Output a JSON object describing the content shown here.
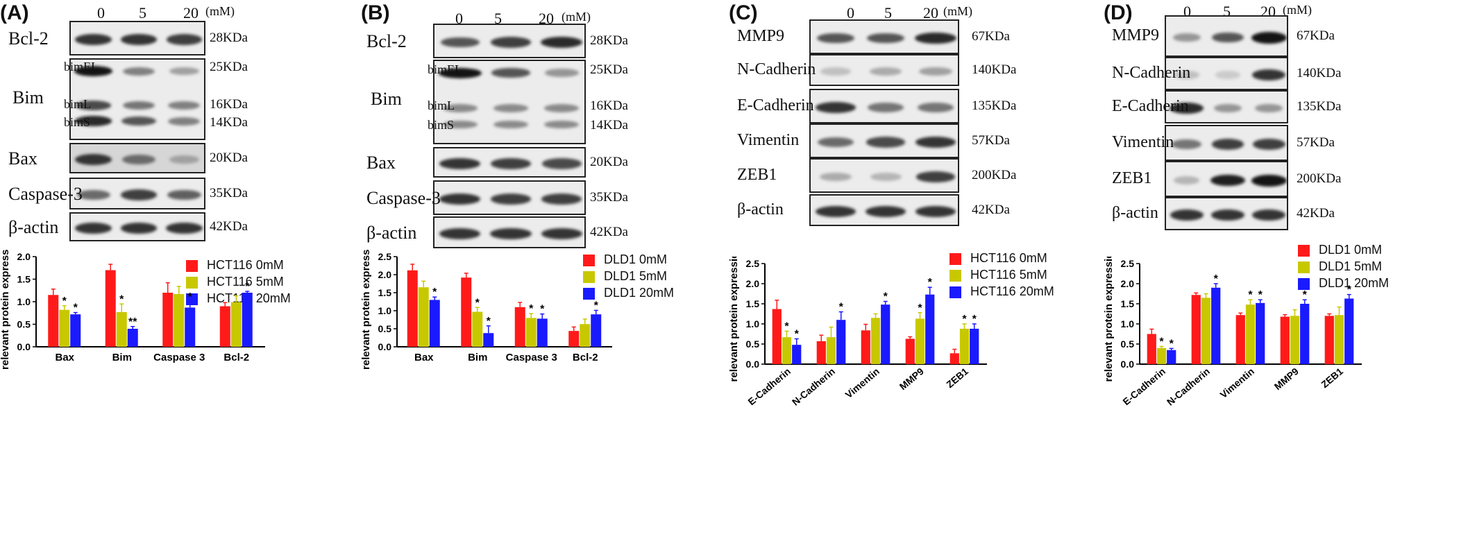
{
  "panels": [
    {
      "label": "(A)",
      "conc": [
        "0",
        "5",
        "20",
        "(mM)"
      ],
      "rows": [
        {
          "name": "Bcl-2",
          "kda": [
            "28KDa"
          ],
          "sub": [],
          "bands": [
            [
              0.85,
              0.85,
              0.8
            ]
          ]
        },
        {
          "name": "Bim",
          "sub": [
            "bimEL",
            "bimL",
            "bimS"
          ],
          "kda": [
            "25KDa",
            "16KDa",
            "14KDa"
          ],
          "bands": [
            [
              1.0,
              0.5,
              0.35
            ],
            [
              0.75,
              0.55,
              0.5
            ],
            [
              0.9,
              0.7,
              0.5
            ]
          ]
        },
        {
          "name": "Bax",
          "kda": [
            "20KDa"
          ],
          "sub": [],
          "bands": [
            [
              0.85,
              0.6,
              0.35
            ]
          ]
        },
        {
          "name": "Caspase-3",
          "kda": [
            "35KDa"
          ],
          "sub": [],
          "bands": [
            [
              0.6,
              0.8,
              0.65
            ]
          ]
        },
        {
          "name": "β-actin",
          "kda": [
            "42KDa"
          ],
          "sub": [],
          "bands": [
            [
              0.85,
              0.85,
              0.85
            ]
          ]
        }
      ],
      "legend": [
        "HCT116 0mM",
        "HCT116 5mM",
        "HCT116 20mM"
      ]
    },
    {
      "label": "(B)",
      "conc": [
        "0",
        "5",
        "20",
        "(mM)"
      ],
      "rows": [
        {
          "name": "Bcl-2",
          "kda": [
            "28KDa"
          ],
          "sub": [],
          "bands": [
            [
              0.7,
              0.8,
              0.9
            ]
          ]
        },
        {
          "name": "Bim",
          "sub": [
            "bimEL",
            "bimL",
            "bimS"
          ],
          "kda": [
            "25KDa",
            "16KDa",
            "14KDa"
          ],
          "bands": [
            [
              1.0,
              0.7,
              0.4
            ],
            [
              0.45,
              0.45,
              0.45
            ],
            [
              0.45,
              0.45,
              0.45
            ]
          ]
        },
        {
          "name": "Bax",
          "kda": [
            "20KDa"
          ],
          "sub": [],
          "bands": [
            [
              0.85,
              0.8,
              0.75
            ]
          ]
        },
        {
          "name": "Caspase-3",
          "kda": [
            "35KDa"
          ],
          "sub": [],
          "bands": [
            [
              0.85,
              0.8,
              0.8
            ]
          ]
        },
        {
          "name": "β-actin",
          "kda": [
            "42KDa"
          ],
          "sub": [],
          "bands": [
            [
              0.85,
              0.85,
              0.85
            ]
          ]
        }
      ],
      "legend": [
        "DLD1 0mM",
        "DLD1 5mM",
        "DLD1 20mM"
      ]
    },
    {
      "label": "(C)",
      "conc": [
        "0",
        "5",
        "20",
        "(mM)"
      ],
      "rows": [
        {
          "name": "MMP9",
          "kda": [
            "67KDa"
          ],
          "sub": [],
          "bands": [
            [
              0.7,
              0.7,
              0.9
            ]
          ]
        },
        {
          "name": "N-Cadherin",
          "kda": [
            "140KDa"
          ],
          "sub": [],
          "bands": [
            [
              0.2,
              0.3,
              0.35
            ]
          ]
        },
        {
          "name": "E-Cadherin",
          "kda": [
            "135KDa"
          ],
          "sub": [],
          "bands": [
            [
              0.85,
              0.55,
              0.55
            ]
          ]
        },
        {
          "name": "Vimentin",
          "kda": [
            "57KDa"
          ],
          "sub": [],
          "bands": [
            [
              0.6,
              0.75,
              0.85
            ]
          ]
        },
        {
          "name": "ZEB1",
          "kda": [
            "200KDa"
          ],
          "sub": [],
          "bands": [
            [
              0.3,
              0.25,
              0.8
            ]
          ]
        },
        {
          "name": "β-actin",
          "kda": [
            "42KDa"
          ],
          "sub": [],
          "bands": [
            [
              0.85,
              0.85,
              0.85
            ]
          ]
        }
      ],
      "legend": [
        "HCT116 0mM",
        "HCT116 5mM",
        "HCT116 20mM"
      ]
    },
    {
      "label": "(D)",
      "conc": [
        "0",
        "5",
        "20",
        "(mM)"
      ],
      "rows": [
        {
          "name": "MMP9",
          "kda": [
            "67KDa"
          ],
          "sub": [],
          "bands": [
            [
              0.4,
              0.7,
              1.0
            ]
          ]
        },
        {
          "name": "N-Cadherin",
          "kda": [
            "140KDa"
          ],
          "sub": [],
          "bands": [
            [
              0.2,
              0.15,
              0.85
            ]
          ]
        },
        {
          "name": "E-Cadherin",
          "kda": [
            "135KDa"
          ],
          "sub": [],
          "bands": [
            [
              0.9,
              0.4,
              0.4
            ]
          ]
        },
        {
          "name": "Vimentin",
          "kda": [
            "57KDa"
          ],
          "sub": [],
          "bands": [
            [
              0.55,
              0.8,
              0.8
            ]
          ]
        },
        {
          "name": "ZEB1",
          "kda": [
            "200KDa"
          ],
          "sub": [],
          "bands": [
            [
              0.25,
              0.95,
              1.0
            ]
          ]
        },
        {
          "name": "β-actin",
          "kda": [
            "42KDa"
          ],
          "sub": [],
          "bands": [
            [
              0.85,
              0.85,
              0.85
            ]
          ]
        }
      ],
      "legend": [
        "DLD1 0mM",
        "DLD1 5mM",
        "DLD1 20mM"
      ]
    }
  ],
  "chart_data": [
    {
      "type": "bar",
      "panel": "A",
      "categories": [
        "Bax",
        "Bim",
        "Caspase 3",
        "Bcl-2"
      ],
      "ylabel": "relevant protein expression",
      "ylim": [
        0,
        2.0
      ],
      "yticks": [
        "0.0",
        "0.5",
        "1.0",
        "1.5",
        "2.0"
      ],
      "colors": [
        "#ff1a1a",
        "#c8c800",
        "#1a1aff"
      ],
      "series": [
        {
          "name": "HCT116 0mM",
          "values": [
            1.15,
            1.7,
            1.2,
            0.9
          ],
          "err": [
            0.13,
            0.13,
            0.22,
            0.08
          ],
          "stars": [
            "",
            "",
            "",
            ""
          ]
        },
        {
          "name": "HCT116 5mM",
          "values": [
            0.82,
            0.77,
            1.17,
            0.99
          ],
          "err": [
            0.09,
            0.18,
            0.17,
            0.14
          ],
          "stars": [
            "*",
            "*",
            "",
            ""
          ]
        },
        {
          "name": "HCT116 20mM",
          "values": [
            0.72,
            0.4,
            0.87,
            1.2
          ],
          "err": [
            0.04,
            0.05,
            0.13,
            0.03
          ],
          "stars": [
            "*",
            "**",
            "*",
            "*"
          ]
        }
      ]
    },
    {
      "type": "bar",
      "panel": "B",
      "categories": [
        "Bax",
        "Bim",
        "Caspase 3",
        "Bcl-2"
      ],
      "ylabel": "relevant protein expression",
      "ylim": [
        0,
        2.5
      ],
      "yticks": [
        "0.0",
        "0.5",
        "1.0",
        "1.5",
        "2.0",
        "2.5"
      ],
      "colors": [
        "#ff1a1a",
        "#c8c800",
        "#1a1aff"
      ],
      "series": [
        {
          "name": "DLD1 0mM",
          "values": [
            2.12,
            1.92,
            1.1,
            0.44
          ],
          "err": [
            0.17,
            0.12,
            0.13,
            0.11
          ],
          "stars": [
            "",
            "",
            "",
            ""
          ]
        },
        {
          "name": "DLD1 5mM",
          "values": [
            1.65,
            0.97,
            0.8,
            0.63
          ],
          "err": [
            0.17,
            0.12,
            0.12,
            0.14
          ],
          "stars": [
            "",
            "*",
            "*",
            ""
          ]
        },
        {
          "name": "DLD1 20mM",
          "values": [
            1.3,
            0.38,
            0.78,
            0.9
          ],
          "err": [
            0.08,
            0.2,
            0.13,
            0.11
          ],
          "stars": [
            "*",
            "*",
            "*",
            "*"
          ]
        }
      ]
    },
    {
      "type": "bar",
      "panel": "C",
      "categories": [
        "E-Cadherin",
        "N-Cadherin",
        "Vimentin",
        "MMP9",
        "ZEB1"
      ],
      "ylabel": "relevant protein expression",
      "ylim": [
        0,
        2.5
      ],
      "yticks": [
        "0.0",
        "0.5",
        "1.0",
        "1.5",
        "2.0",
        "2.5"
      ],
      "colors": [
        "#ff1a1a",
        "#c8c800",
        "#1a1aff"
      ],
      "series": [
        {
          "name": "HCT116 0mM",
          "values": [
            1.37,
            0.57,
            0.84,
            0.63,
            0.27
          ],
          "err": [
            0.22,
            0.15,
            0.15,
            0.05,
            0.1
          ],
          "stars": [
            "",
            "",
            "",
            "",
            ""
          ]
        },
        {
          "name": "HCT116 5mM",
          "values": [
            0.67,
            0.67,
            1.15,
            1.13,
            0.88
          ],
          "err": [
            0.15,
            0.25,
            0.1,
            0.15,
            0.12
          ],
          "stars": [
            "*",
            "",
            "",
            "*",
            "*"
          ]
        },
        {
          "name": "HCT116 20mM",
          "values": [
            0.48,
            1.1,
            1.48,
            1.73,
            0.88
          ],
          "err": [
            0.15,
            0.2,
            0.08,
            0.18,
            0.12
          ],
          "stars": [
            "*",
            "*",
            "*",
            "*",
            "*"
          ]
        }
      ]
    },
    {
      "type": "bar",
      "panel": "D",
      "categories": [
        "E-Cadherin",
        "N-Cadherin",
        "Vimentin",
        "MMP9",
        "ZEB1"
      ],
      "ylabel": "relevant protein expression",
      "ylim": [
        0,
        2.5
      ],
      "yticks": [
        "0.0",
        "0.5",
        "1.0",
        "1.5",
        "2.0",
        "2.5"
      ],
      "colors": [
        "#ff1a1a",
        "#c8c800",
        "#1a1aff"
      ],
      "series": [
        {
          "name": "DLD1 0mM",
          "values": [
            0.75,
            1.72,
            1.22,
            1.18,
            1.2
          ],
          "err": [
            0.12,
            0.05,
            0.05,
            0.05,
            0.05
          ],
          "stars": [
            "",
            "",
            "",
            "",
            ""
          ]
        },
        {
          "name": "DLD1 5mM",
          "values": [
            0.4,
            1.65,
            1.48,
            1.2,
            1.22
          ],
          "err": [
            0.04,
            0.1,
            0.12,
            0.15,
            0.2
          ],
          "stars": [
            "*",
            "",
            "*",
            "",
            ""
          ]
        },
        {
          "name": "DLD1 20mM",
          "values": [
            0.35,
            1.9,
            1.52,
            1.5,
            1.63
          ],
          "err": [
            0.04,
            0.1,
            0.08,
            0.1,
            0.1
          ],
          "stars": [
            "*",
            "*",
            "*",
            "*",
            "*"
          ]
        }
      ]
    }
  ]
}
